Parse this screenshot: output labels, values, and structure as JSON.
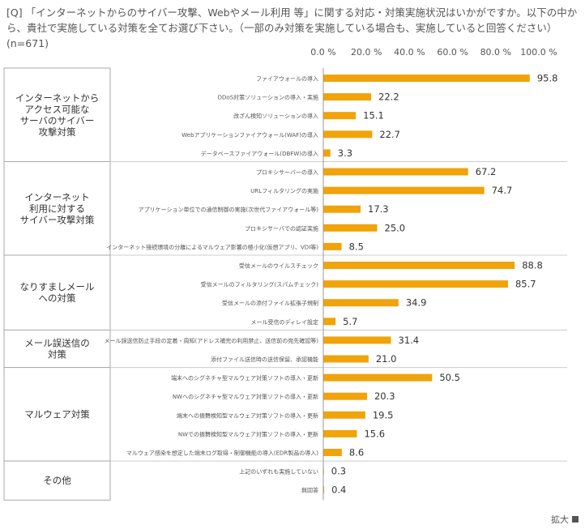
{
  "question": {
    "text": "[Q] 「インターネットからのサイバー攻撃、Webやメール利用 等」に関する対応・対策実施状況はいかがですか。以下の中から、貴社で実施している対策を全てお選び下さい。（一部のみ対策を実施している場合も、実施していると回答ください）",
    "n": "(n=671)"
  },
  "footer": {
    "zoom_label": "拡大"
  },
  "colors": {
    "bar": "#f0a30a",
    "border": "#aaaaaa",
    "text": "#333333"
  },
  "chart_data": {
    "type": "bar",
    "orientation": "horizontal",
    "xlim": [
      0,
      100
    ],
    "x_ticks": [
      0,
      20,
      40,
      60,
      80,
      100
    ],
    "x_tick_labels": [
      "0.0 %",
      "20.0 %",
      "40.0 %",
      "60.0 %",
      "80.0 %",
      "100.0 %"
    ],
    "value_format": "one-decimal",
    "groups": [
      {
        "label": "インターネットからアクセス可能なサーバのサイバー攻撃対策",
        "label_lines": [
          "インターネットから",
          "アクセス可能な",
          "サーバのサイバー",
          "攻撃対策"
        ],
        "items": [
          {
            "label": "ファイアウォールの導入",
            "value": 95.8
          },
          {
            "label": "DDoS対策ソリューションの導入・実施",
            "value": 22.2
          },
          {
            "label": "改ざん検知ソリューションの導入",
            "value": 15.1
          },
          {
            "label": "Webアプリケーションファイアウォール(WAF)の導入",
            "value": 22.7
          },
          {
            "label": "データベースファイアウォール(DBFW)の導入",
            "value": 3.3
          }
        ]
      },
      {
        "label": "インターネット利用に対するサイバー攻撃対策",
        "label_lines": [
          "インターネット",
          "利用に対する",
          "サイバー攻撃対策"
        ],
        "items": [
          {
            "label": "プロキシサーバーの導入",
            "value": 67.2
          },
          {
            "label": "URLフィルタリングの実施",
            "value": 74.7
          },
          {
            "label": "アプリケーション単位での通信制御の実施(次世代ファイアウォール等)",
            "value": 17.3
          },
          {
            "label": "プロキシサーバでの認証実施",
            "value": 25.0
          },
          {
            "label": "インターネット接続環境の分離によるマルウェア影響の極小化(仮想アプリ、VDI等)",
            "value": 8.5
          }
        ]
      },
      {
        "label": "なりすましメールへの対策",
        "label_lines": [
          "なりすましメール",
          "への対策"
        ],
        "items": [
          {
            "label": "受信メールのウイルスチェック",
            "value": 88.8
          },
          {
            "label": "受信メールのフィルタリング(スパムチェック)",
            "value": 85.7
          },
          {
            "label": "受信メールの添付ファイル拡張子規制",
            "value": 34.9
          },
          {
            "label": "メール受信のディレイ設定",
            "value": 5.7
          }
        ]
      },
      {
        "label": "メール誤送信の対策",
        "label_lines": [
          "メール誤送信の",
          "対策"
        ],
        "items": [
          {
            "label": "メール誤送信防止手段の定着・周知(アドレス補完の利用禁止、送信前の宛先確認等)",
            "value": 31.4
          },
          {
            "label": "添付ファイル送信時の送信保留、承認機能",
            "value": 21.0
          }
        ]
      },
      {
        "label": "マルウェア対策",
        "label_lines": [
          "マルウェア対策"
        ],
        "items": [
          {
            "label": "端末へのシグネチャ型マルウェア対策ソフトの導入・更新",
            "value": 50.5
          },
          {
            "label": "NWへのシグネチャ型マルウェア対策ソフトの導入・更新",
            "value": 20.3
          },
          {
            "label": "端末への振舞検知型マルウェア対策ソフトの導入・更新",
            "value": 19.5
          },
          {
            "label": "NWでの振舞検知型マルウェア対策ソフトの導入・更新",
            "value": 15.6
          },
          {
            "label": "マルウェア感染を想定した端末ログ取得・制御機能の導入(EDR製品の導入)",
            "value": 8.6
          }
        ]
      },
      {
        "label": "その他",
        "label_lines": [
          "その他"
        ],
        "items": [
          {
            "label": "上記のいずれも実施していない",
            "value": 0.3
          },
          {
            "label": "無回答",
            "value": 0.4
          }
        ]
      }
    ]
  }
}
